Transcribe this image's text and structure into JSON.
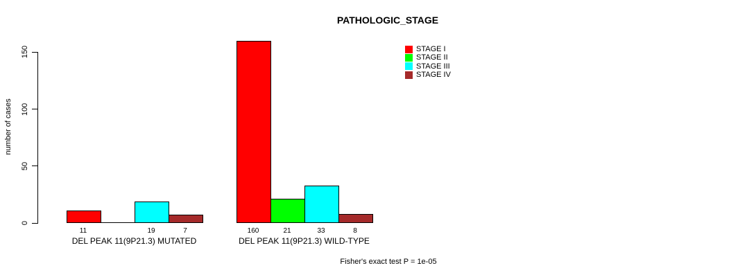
{
  "title": "PATHOLOGIC_STAGE",
  "chart_data": {
    "type": "bar",
    "title": "PATHOLOGIC_STAGE",
    "xlabel": "",
    "ylabel": "number of cases",
    "ylim": [
      0,
      160
    ],
    "yticks": [
      0,
      50,
      100,
      150
    ],
    "grid": false,
    "legend_position": "top-right",
    "categories": [
      "DEL PEAK 11(9P21.3) MUTATED",
      "DEL PEAK 11(9P21.3) WILD-TYPE"
    ],
    "series": [
      {
        "name": "STAGE I",
        "color": "#ff0000",
        "values": [
          11,
          160
        ]
      },
      {
        "name": "STAGE II",
        "color": "#00ff00",
        "values": [
          0,
          21
        ]
      },
      {
        "name": "STAGE III",
        "color": "#00ffff",
        "values": [
          19,
          33
        ]
      },
      {
        "name": "STAGE IV",
        "color": "#a52a2a",
        "values": [
          7,
          8
        ]
      }
    ],
    "bar_value_labels": [
      [
        "11",
        "",
        "19",
        "7"
      ],
      [
        "160",
        "21",
        "33",
        "8"
      ]
    ],
    "annotation": "Fisher's exact test P = 1e-05"
  }
}
